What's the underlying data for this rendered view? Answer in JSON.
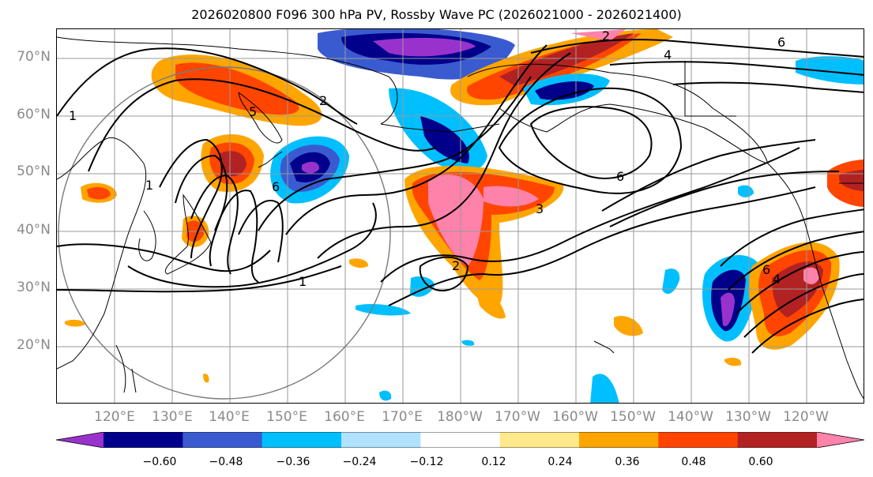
{
  "title": "2026020800 F096 300 hPa PV, Rossby Wave PC (2026021000 - 2026021400)",
  "lat_labels": [
    "70°N",
    "60°N",
    "50°N",
    "40°N",
    "30°N",
    "20°N"
  ],
  "lon_labels": [
    "120°E",
    "130°E",
    "140°E",
    "150°E",
    "160°E",
    "170°E",
    "180°W",
    "170°W",
    "160°W",
    "150°W",
    "140°W",
    "130°W",
    "120°W"
  ],
  "colorbar": {
    "tick_labels": [
      "−0.60",
      "−0.48",
      "−0.36",
      "−0.24",
      "−0.12",
      "0.12",
      "0.24",
      "0.36",
      "0.48",
      "0.60"
    ],
    "colors": [
      "#9932cc",
      "#00008b",
      "#3a5bd0",
      "#00bfff",
      "#b0e2ff",
      "#ffffff",
      "#ffe98c",
      "#ffa500",
      "#ff4500",
      "#b22222",
      "#ff82ab"
    ],
    "extend": "both"
  },
  "contour_labels": [
    "1",
    "1",
    "1",
    "2",
    "2",
    "3",
    "4",
    "5",
    "6",
    "6",
    "6",
    "6",
    "2",
    "4"
  ],
  "map": {
    "projection": "PlateCarree",
    "extent_lon": [
      110,
      250
    ],
    "extent_lat": [
      10,
      75
    ],
    "gridlines": true,
    "coastlines": true
  }
}
